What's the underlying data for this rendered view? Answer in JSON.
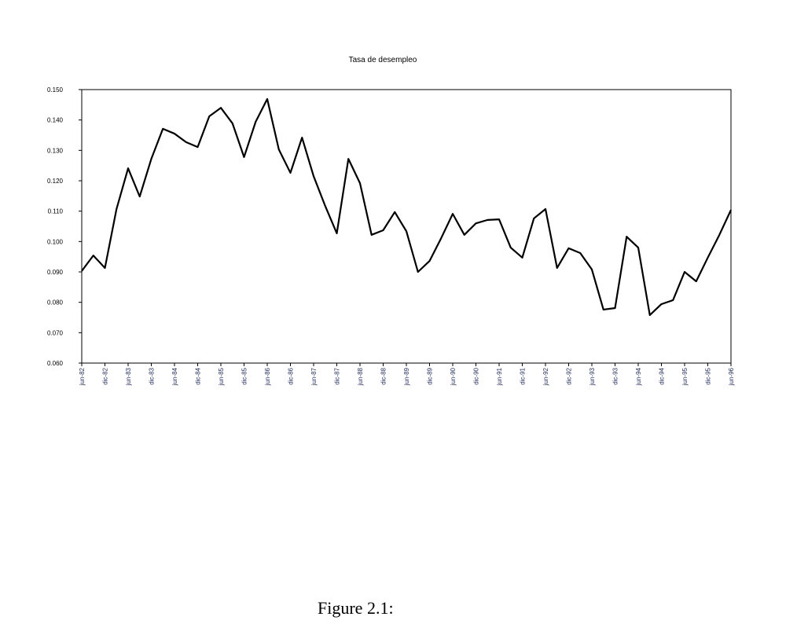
{
  "chart_data": {
    "type": "line",
    "title": "Tasa de desempleo",
    "categories": [
      "jun-82",
      null,
      "dic-82",
      null,
      "jun-83",
      null,
      "dic-83",
      null,
      "jun-84",
      null,
      "dic-84",
      null,
      "jun-85",
      null,
      "dic-85",
      null,
      "jun-86",
      null,
      "dic-86",
      null,
      "jun-87",
      null,
      "dic-87",
      null,
      "jun-88",
      null,
      "dic-88",
      null,
      "jun-89",
      null,
      "dic-89",
      null,
      "jun-90",
      null,
      "dic-90",
      null,
      "jun-91",
      null,
      "dic-91",
      null,
      "jun-92",
      null,
      "dic-92",
      null,
      "jun-93",
      null,
      "dic-93",
      null,
      "jun-94",
      null,
      "dic-94",
      null,
      "jun-95",
      null,
      "dic-95",
      null,
      "jun-96"
    ],
    "series": [
      {
        "color": "#000000",
        "values": [
          0.0903,
          0.0954,
          0.0913,
          0.1107,
          0.1241,
          0.1148,
          0.1272,
          0.1371,
          0.1355,
          0.1327,
          0.1311,
          0.1412,
          0.144,
          0.1389,
          0.1278,
          0.1394,
          0.1469,
          0.1303,
          0.1226,
          0.1342,
          0.1215,
          0.1117,
          0.1027,
          0.1272,
          0.1192,
          0.1022,
          0.1037,
          0.1097,
          0.1034,
          0.09,
          0.0936,
          0.1011,
          0.1091,
          0.1022,
          0.106,
          0.1071,
          0.1073,
          0.098,
          0.0947,
          0.1076,
          0.1107,
          0.0913,
          0.0978,
          0.0962,
          0.0908,
          0.0776,
          0.0781,
          0.1016,
          0.098,
          0.0758,
          0.0794,
          0.0807,
          0.09,
          0.0869,
          0.0947,
          0.1022,
          0.1104
        ]
      }
    ],
    "ylim": [
      0.06,
      0.15
    ],
    "yticks": [
      {
        "value": 0.06,
        "label": "0.060"
      },
      {
        "value": 0.07,
        "label": "0.070"
      },
      {
        "value": 0.08,
        "label": "0.080"
      },
      {
        "value": 0.09,
        "label": "0.090"
      },
      {
        "value": 0.1,
        "label": "0.100"
      },
      {
        "value": 0.11,
        "label": "0.110"
      },
      {
        "value": 0.12,
        "label": "0.120"
      },
      {
        "value": 0.13,
        "label": "0.130"
      },
      {
        "value": 0.14,
        "label": "0.140"
      },
      {
        "value": 0.15,
        "label": "0.150"
      }
    ],
    "grid": false
  },
  "caption": "Figure 2.1:"
}
